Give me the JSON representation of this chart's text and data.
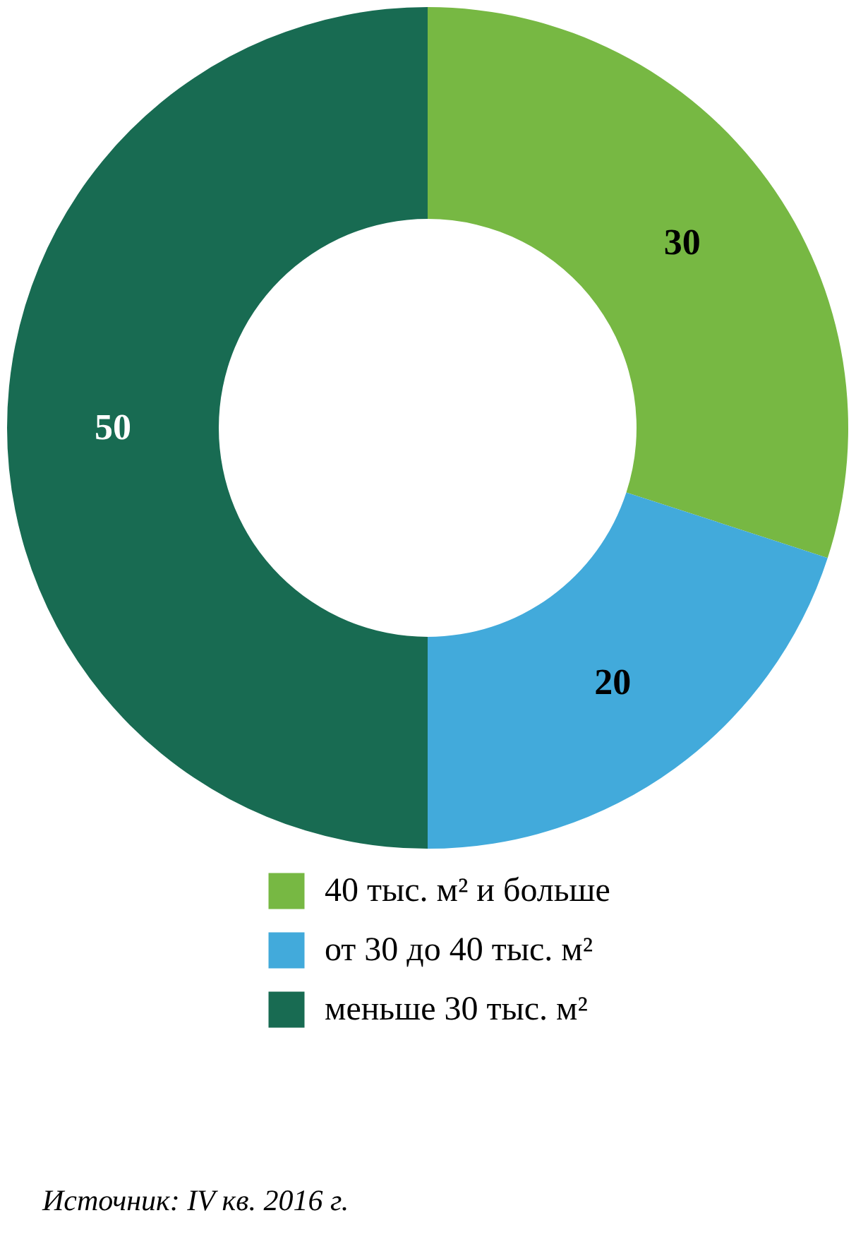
{
  "chart_data": {
    "type": "donut",
    "categories": [
      "40 тыс. м² и больше",
      "от 30 до 40 тыс. м²",
      "меньше 30 тыс. м²"
    ],
    "values": [
      30,
      20,
      50
    ],
    "colors": [
      "#77b843",
      "#42aadb",
      "#186b52"
    ],
    "data_labels": true,
    "legend": "bottom right",
    "annotations": [
      "Источник: IV кв. 2016 г."
    ]
  }
}
